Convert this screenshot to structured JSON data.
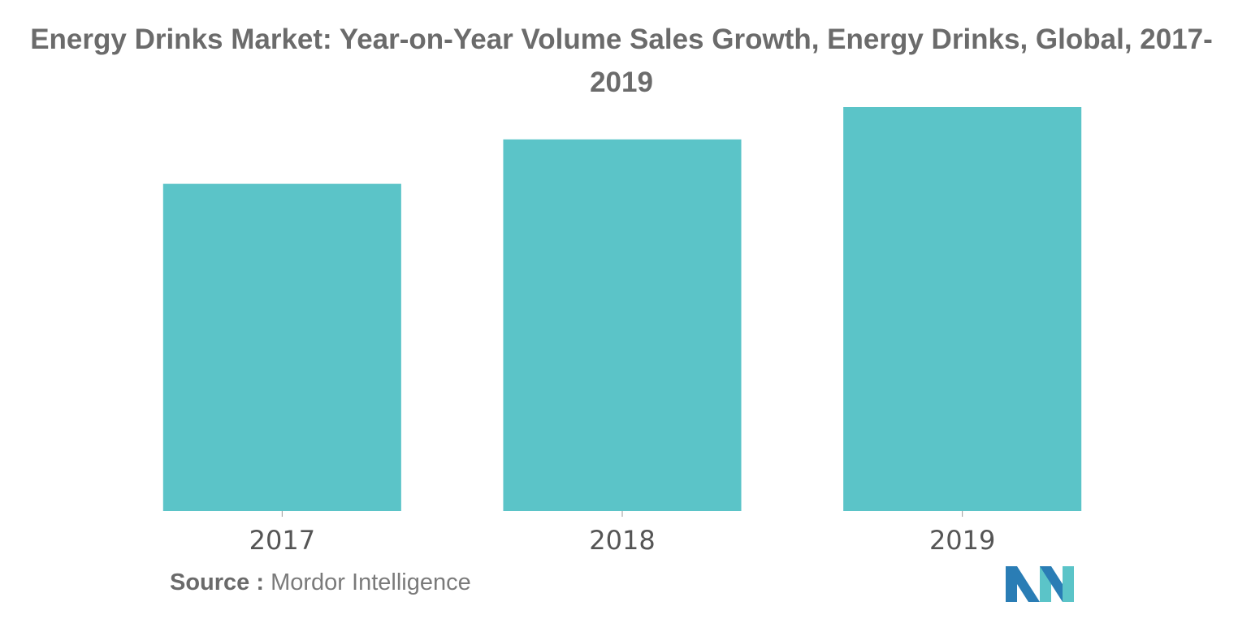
{
  "chart_data": {
    "type": "bar",
    "title": "Energy Drinks Market: Year-on-Year Volume Sales Growth, Energy Drinks, Global, 2017-2019",
    "categories": [
      "2017",
      "2018",
      "2019"
    ],
    "values": [
      81,
      92,
      100
    ],
    "xlabel": "",
    "ylabel": "",
    "ylim": [
      0,
      100
    ],
    "grid": false,
    "legend": "none",
    "bar_color": "#5bc4c8"
  },
  "source": {
    "label": "Source :",
    "text": "Mordor Intelligence"
  },
  "logo": {
    "icon": "mordor-intelligence-logo-icon",
    "colors": [
      "#2a7db5",
      "#5bc4c8"
    ]
  }
}
